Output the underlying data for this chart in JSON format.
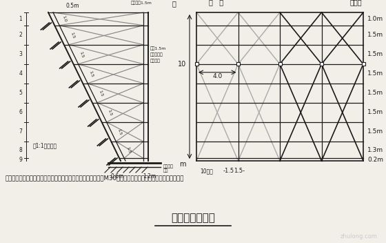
{
  "bg_color": "#f2efe9",
  "title": "施工脚手架简图",
  "note": "注：人工对基础扰动部分进行清理平整，清理后的回坑处，采用M30水泥砂浆填平，确保脚手架基础坚固稳定。",
  "right_labels": [
    "1.0m",
    "1.5m",
    "1.5m",
    "1.5m",
    "1.5m",
    "1.5m",
    "1.5m",
    "1.3m",
    "0.2m"
  ],
  "row_heights": [
    1.0,
    1.5,
    1.5,
    1.5,
    1.5,
    1.5,
    1.5,
    1.3,
    0.2
  ],
  "title_left": "马   道",
  "title_right": "马　道",
  "lc": "#1a1a1a",
  "gray_color": "#888888",
  "lgray_color": "#aaaaaa"
}
